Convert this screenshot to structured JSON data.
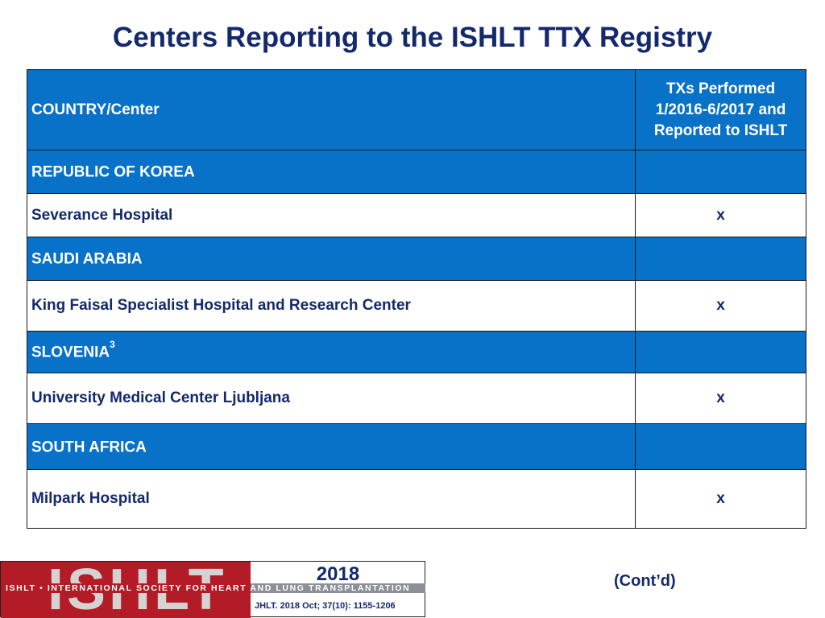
{
  "title": "Centers Reporting to the ISHLT TTX Registry",
  "table": {
    "col1_header": "COUNTRY/Center",
    "col2_header_lines": [
      "TXs Performed",
      "1/2016-6/2017 and",
      "Reported to ISHLT"
    ],
    "rows": [
      {
        "kind": "country",
        "label": "REPUBLIC OF KOREA",
        "sup": "",
        "mark": ""
      },
      {
        "kind": "center",
        "label": "Severance Hospital",
        "sup": "",
        "mark": "x"
      },
      {
        "kind": "country",
        "label": "SAUDI ARABIA",
        "sup": "",
        "mark": ""
      },
      {
        "kind": "center",
        "label": "King Faisal Specialist Hospital and Research Center",
        "sup": "",
        "mark": "x"
      },
      {
        "kind": "country",
        "label": "SLOVENIA",
        "sup": "3",
        "mark": ""
      },
      {
        "kind": "center",
        "label": "University Medical Center Ljubljana",
        "sup": "",
        "mark": "x"
      },
      {
        "kind": "country",
        "label": "SOUTH AFRICA",
        "sup": "",
        "mark": ""
      },
      {
        "kind": "center",
        "label": "Milpark Hospital",
        "sup": "",
        "mark": "x"
      }
    ]
  },
  "footer": {
    "logo_text": "ISHLT",
    "tagline": "ISHLT • INTERNATIONAL SOCIETY FOR HEART AND LUNG TRANSPLANTATION",
    "year": "2018",
    "citation": "JHLT. 2018 Oct; 37(10): 1155-1206"
  },
  "contd": "(Cont’d)",
  "colors": {
    "title": "#14296b",
    "row_blue": "#0871c8",
    "logo_red": "#b31c26"
  }
}
